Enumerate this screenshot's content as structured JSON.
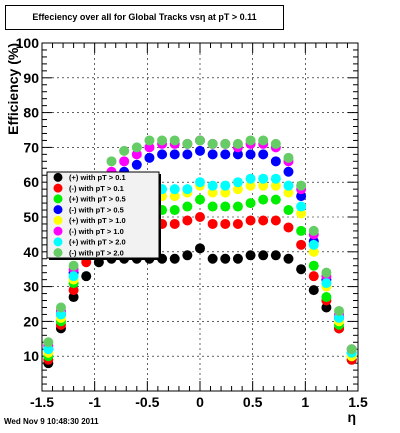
{
  "title": "Effeciency over all for Global Tracks vsη at pT > 0.11",
  "footer": "Wed Nov  9 10:48:30 2011",
  "chart_data": {
    "type": "scatter",
    "xlabel": "η",
    "ylabel": "Efficiency (%)",
    "xlim": [
      -1.5,
      1.5
    ],
    "ylim": [
      0,
      100
    ],
    "xticks": [
      -1.5,
      -1,
      -0.5,
      0,
      0.5,
      1,
      1.5
    ],
    "xtick_labels": [
      "-1.5",
      "-1",
      "-0.5",
      "0",
      "0.5",
      "1",
      "1.5"
    ],
    "yticks": [
      0,
      10,
      20,
      30,
      40,
      50,
      60,
      70,
      80,
      90,
      100
    ],
    "ytick_labels": [
      "",
      "10",
      "20",
      "30",
      "40",
      "50",
      "60",
      "70",
      "80",
      "90",
      "100"
    ],
    "grid": true,
    "legend_position": "left",
    "x": [
      -1.44,
      -1.32,
      -1.2,
      -1.08,
      -0.96,
      -0.84,
      -0.72,
      -0.6,
      -0.48,
      -0.36,
      -0.24,
      -0.12,
      0.0,
      0.12,
      0.24,
      0.36,
      0.48,
      0.6,
      0.72,
      0.84,
      0.96,
      1.08,
      1.2,
      1.32,
      1.44
    ],
    "series": [
      {
        "name": "(+) with pT > 0.1",
        "color": "#000000",
        "values": [
          8,
          18,
          27,
          33,
          37,
          38,
          38,
          38,
          38,
          38,
          38,
          39,
          41,
          38,
          38,
          38,
          39,
          39,
          39,
          38,
          35,
          29,
          24,
          18,
          9
        ]
      },
      {
        "name": "(-) with pT > 0.1",
        "color": "#ff0000",
        "values": [
          9,
          19,
          29,
          37,
          42,
          45,
          47,
          48,
          48,
          48,
          48,
          49,
          50,
          48,
          48,
          48,
          49,
          49,
          49,
          47,
          42,
          33,
          26,
          18,
          9
        ]
      },
      {
        "name": "(+) with pT > 0.5",
        "color": "#00ee00",
        "values": [
          10,
          20,
          31,
          41,
          48,
          51,
          52,
          52,
          52,
          52,
          52,
          53,
          55,
          53,
          53,
          53,
          54,
          55,
          55,
          52,
          46,
          36,
          27,
          19,
          10
        ]
      },
      {
        "name": "(-) with pT > 0.5",
        "color": "#0000ff",
        "values": [
          12,
          22,
          34,
          45,
          55,
          60,
          63,
          65,
          67,
          68,
          68,
          68,
          69,
          68,
          68,
          68,
          68,
          68,
          66,
          63,
          56,
          43,
          32,
          21,
          11
        ]
      },
      {
        "name": "(+) with pT > 1.0",
        "color": "#ffff00",
        "values": [
          11,
          21,
          32,
          43,
          52,
          55,
          56,
          56,
          56,
          56,
          56,
          57,
          59,
          57,
          57,
          58,
          59,
          59,
          59,
          57,
          51,
          40,
          30,
          20,
          10
        ]
      },
      {
        "name": "(-) with pT > 1.0",
        "color": "#ff00ff",
        "values": [
          13,
          23,
          35,
          47,
          58,
          63,
          66,
          68,
          70,
          71,
          71,
          71,
          72,
          71,
          71,
          70,
          71,
          71,
          70,
          66,
          58,
          45,
          33,
          22,
          12
        ]
      },
      {
        "name": "(+) with pT > 2.0",
        "color": "#00ffff",
        "values": [
          12,
          22,
          33,
          44,
          54,
          57,
          58,
          58,
          58,
          58,
          58,
          58,
          60,
          59,
          59,
          60,
          61,
          61,
          61,
          59,
          53,
          42,
          31,
          21,
          11
        ]
      },
      {
        "name": "(-) with pT > 2.0",
        "color": "#66cc66",
        "values": [
          14,
          24,
          36,
          48,
          60,
          66,
          69,
          70,
          72,
          72,
          72,
          71,
          72,
          71,
          71,
          71,
          72,
          72,
          71,
          67,
          59,
          46,
          34,
          23,
          12
        ]
      }
    ]
  }
}
